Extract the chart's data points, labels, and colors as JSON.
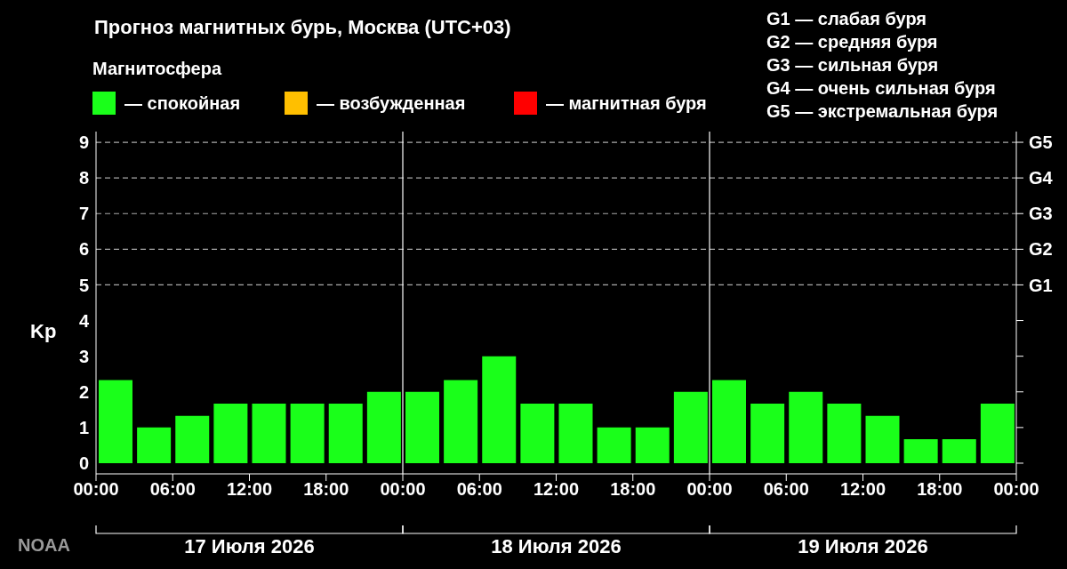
{
  "chart_data": {
    "type": "bar",
    "title": "Прогноз магнитных бурь, Москва (UTC+03)",
    "legend_title": "Магнитосфера",
    "ylabel": "Kp",
    "x": [
      "2026-07-17T01:30",
      "2026-07-17T04:30",
      "2026-07-17T07:30",
      "2026-07-17T10:30",
      "2026-07-17T13:30",
      "2026-07-17T16:30",
      "2026-07-17T19:30",
      "2026-07-17T22:30",
      "2026-07-18T01:30",
      "2026-07-18T04:30",
      "2026-07-18T07:30",
      "2026-07-18T10:30",
      "2026-07-18T13:30",
      "2026-07-18T16:30",
      "2026-07-18T19:30",
      "2026-07-18T22:30",
      "2026-07-19T01:30",
      "2026-07-19T04:30",
      "2026-07-19T07:30",
      "2026-07-19T10:30",
      "2026-07-19T13:30",
      "2026-07-19T16:30",
      "2026-07-19T19:30",
      "2026-07-19T22:30"
    ],
    "series": [
      {
        "name": "— спокойная",
        "color": "#1aff1a",
        "values": [
          2.33,
          1,
          1.33,
          1.67,
          1.67,
          1.67,
          1.67,
          2,
          2,
          2.33,
          3,
          1.67,
          1.67,
          1,
          1,
          2,
          2.33,
          1.67,
          2,
          1.67,
          1.33,
          0.67,
          0.67,
          1.67
        ]
      },
      {
        "name": "— возбужденная",
        "color": "#ffbf00",
        "values": [
          null,
          null,
          null,
          null,
          null,
          null,
          null,
          null,
          null,
          null,
          null,
          null,
          null,
          null,
          null,
          null,
          null,
          null,
          null,
          null,
          null,
          null,
          null,
          null
        ]
      },
      {
        "name": "— магнитная буря",
        "color": "#ff0000",
        "values": [
          null,
          null,
          null,
          null,
          null,
          null,
          null,
          null,
          null,
          null,
          null,
          null,
          null,
          null,
          null,
          null,
          null,
          null,
          null,
          null,
          null,
          null,
          null,
          null
        ]
      }
    ],
    "stacked": true,
    "xlim": [
      "2026-07-17T00:00",
      "2026-07-20T00:00"
    ],
    "xticks": [
      {
        "value": "2026-07-17T00:00",
        "label": "00:00"
      },
      {
        "value": "2026-07-17T06:00",
        "label": "06:00"
      },
      {
        "value": "2026-07-17T12:00",
        "label": "12:00"
      },
      {
        "value": "2026-07-17T18:00",
        "label": "18:00"
      },
      {
        "value": "2026-07-18T00:00",
        "label": "00:00"
      },
      {
        "value": "2026-07-18T06:00",
        "label": "06:00"
      },
      {
        "value": "2026-07-18T12:00",
        "label": "12:00"
      },
      {
        "value": "2026-07-18T18:00",
        "label": "18:00"
      },
      {
        "value": "2026-07-19T00:00",
        "label": "00:00"
      },
      {
        "value": "2026-07-19T06:00",
        "label": "06:00"
      },
      {
        "value": "2026-07-19T12:00",
        "label": "12:00"
      },
      {
        "value": "2026-07-19T18:00",
        "label": "18:00"
      },
      {
        "value": "2026-07-20T00:00",
        "label": "00:00"
      }
    ],
    "ylim": [
      -0.3,
      9.3
    ],
    "yticks": [
      0,
      1,
      2,
      3,
      4,
      5,
      6,
      7,
      8,
      9
    ],
    "ref_lines": [
      {
        "axis": "y",
        "value": 5,
        "label": "G1",
        "color": "#aaaaaa",
        "line_style": "dashed"
      },
      {
        "axis": "y",
        "value": 6,
        "label": "G2",
        "color": "#aaaaaa",
        "line_style": "dashed"
      },
      {
        "axis": "y",
        "value": 7,
        "label": "G3",
        "color": "#aaaaaa",
        "line_style": "dashed"
      },
      {
        "axis": "y",
        "value": 8,
        "label": "G4",
        "color": "#aaaaaa",
        "line_style": "dashed"
      },
      {
        "axis": "y",
        "value": 9,
        "label": "G5",
        "color": "#aaaaaa",
        "line_style": "dashed"
      },
      {
        "axis": "x",
        "value": "2026-07-18T00:00",
        "color": "#ffffff",
        "line_style": "solid"
      },
      {
        "axis": "x",
        "value": "2026-07-19T00:00",
        "color": "#ffffff",
        "line_style": "solid"
      }
    ],
    "legend": "top left",
    "annotations": [
      "G1 — слабая буря",
      "G2 — средняя буря",
      "G3 — сильная буря",
      "G4 — очень сильная буря",
      "G5 — экстремальная буря",
      "17 Июля 2026",
      "18 Июля 2026",
      "19 Июля 2026",
      "NOAA"
    ]
  }
}
